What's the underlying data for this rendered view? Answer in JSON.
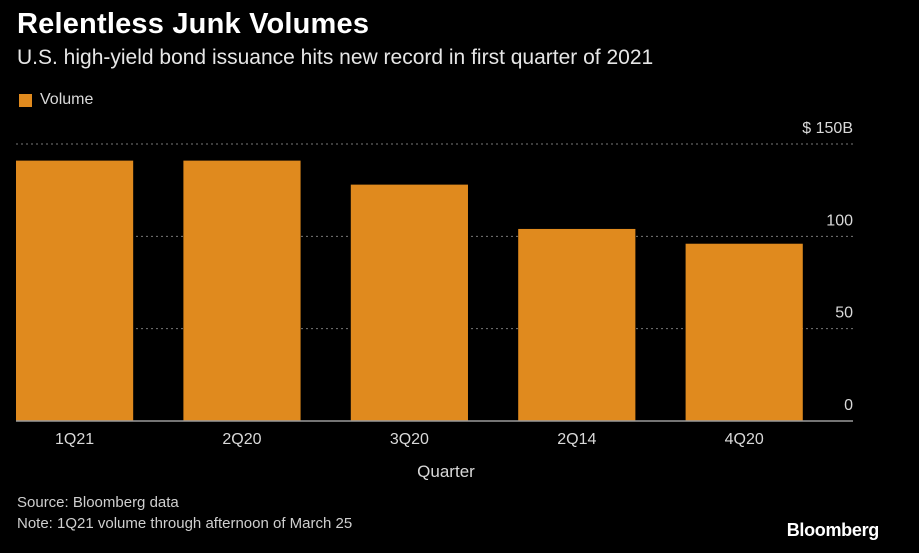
{
  "header": {
    "title": "Relentless Junk Volumes",
    "subtitle": "U.S. high-yield bond issuance hits new record in first quarter of 2021"
  },
  "legend": {
    "label": "Volume"
  },
  "footer": {
    "source": "Source: Bloomberg data",
    "note": "Note: 1Q21 volume through afternoon of March 25",
    "brand": "Bloomberg"
  },
  "colors": {
    "bar": "#e08a1e",
    "background": "#000000",
    "grid": "#777777"
  },
  "chart_data": {
    "type": "bar",
    "title": "Relentless Junk Volumes",
    "subtitle": "U.S. high-yield bond issuance hits new record in first quarter of 2021",
    "xlabel": "Quarter",
    "ylabel": "",
    "categories": [
      "1Q21",
      "2Q20",
      "3Q20",
      "2Q14",
      "4Q20"
    ],
    "series": [
      {
        "name": "Volume",
        "values": [
          141,
          141,
          128,
          104,
          96
        ]
      }
    ],
    "ylim": [
      0,
      150
    ],
    "yticks": [
      0,
      50,
      100,
      150
    ],
    "ytick_labels": [
      "0",
      "50",
      "100",
      "$ 150B"
    ],
    "grid": true,
    "legend_position": "top-left",
    "y_axis_side": "right"
  }
}
